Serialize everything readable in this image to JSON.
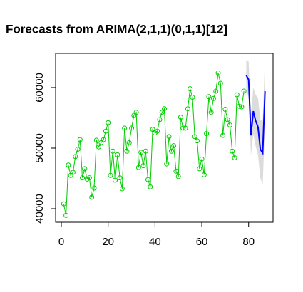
{
  "chart_data": {
    "type": "line",
    "title": "Forecasts from ARIMA(2,1,1)(0,1,1)[12]",
    "xlim": [
      -2.44,
      90.44
    ],
    "ylim": [
      37765,
      65640
    ],
    "xticks": [
      0,
      20,
      40,
      60,
      80
    ],
    "yticks": [
      40000,
      50000,
      60000
    ],
    "observed": {
      "color": "#00cd00",
      "x": [
        1,
        2,
        3,
        4,
        5,
        6,
        7,
        8,
        9,
        10,
        11,
        12,
        13,
        14,
        15,
        16,
        17,
        18,
        19,
        20,
        21,
        22,
        23,
        24,
        25,
        26,
        27,
        28,
        29,
        30,
        31,
        32,
        33,
        34,
        35,
        36,
        37,
        38,
        39,
        40,
        41,
        42,
        43,
        44,
        45,
        46,
        47,
        48,
        49,
        50,
        51,
        52,
        53,
        54,
        55,
        56,
        57,
        58,
        59,
        60,
        61,
        62,
        63,
        64,
        65,
        66,
        67,
        68,
        69,
        70,
        71,
        72,
        73,
        74,
        75,
        76,
        77,
        78
      ],
      "values": [
        40800,
        38900,
        47200,
        45500,
        46000,
        48600,
        49800,
        51400,
        45100,
        46600,
        44900,
        45100,
        41900,
        43400,
        51300,
        50200,
        50900,
        51400,
        52800,
        54200,
        45500,
        49500,
        44700,
        48900,
        45100,
        43300,
        53300,
        49500,
        50900,
        53300,
        55400,
        55900,
        46800,
        49300,
        47100,
        49500,
        44800,
        43600,
        53100,
        52500,
        52800,
        54700,
        55900,
        56500,
        47400,
        51900,
        49500,
        50400,
        46200,
        45300,
        55100,
        53300,
        53300,
        56500,
        59800,
        58400,
        51900,
        51200,
        46600,
        48200,
        45600,
        52400,
        58500,
        55900,
        58200,
        59400,
        62400,
        60700,
        52100,
        56400,
        54700,
        53800,
        49500,
        48400,
        58800,
        56900,
        56800,
        59400
      ]
    },
    "forecast": {
      "color": "#0000ff",
      "x": [
        79,
        80,
        81,
        82,
        83,
        84,
        85,
        86,
        87
      ],
      "values": [
        62000,
        61300,
        52100,
        56100,
        54500,
        53500,
        49800,
        49200,
        59400
      ]
    },
    "interval": {
      "color": "#dcdcdc",
      "x": [
        79,
        80,
        81,
        82,
        83,
        84,
        85,
        86,
        87
      ],
      "lower": [
        59600,
        58400,
        48800,
        52300,
        50300,
        48900,
        45000,
        44000,
        53800
      ],
      "upper": [
        64600,
        64300,
        55500,
        60000,
        58800,
        58300,
        54700,
        54500,
        65000
      ]
    }
  }
}
